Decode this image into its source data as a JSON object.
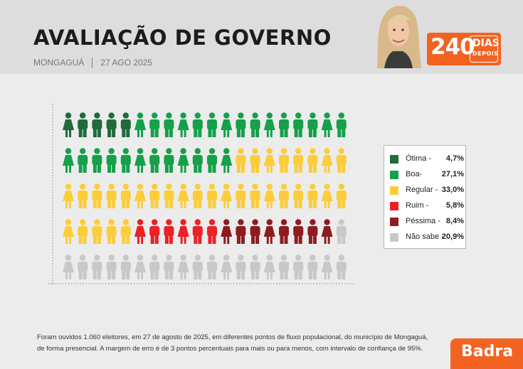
{
  "header": {
    "title": "AVALIAÇÃO DE GOVERNO",
    "location": "MONGAGUÁ",
    "date": "27 AGO 2025",
    "badge_number": "240",
    "badge_word1": "DIAS",
    "badge_word2": "DEPOIS",
    "accent_color": "#f26322"
  },
  "chart_data": {
    "type": "pictograph",
    "icons_total": 100,
    "series": [
      {
        "name": "Ótima",
        "label": "Ótima -",
        "value_text": "4,7%",
        "value": 4.7,
        "icons": 5,
        "color": "#1f6b3a"
      },
      {
        "name": "Boa",
        "label": "Boa-",
        "value_text": "27,1%",
        "value": 27.1,
        "icons": 27,
        "color": "#15a04a"
      },
      {
        "name": "Regular",
        "label": "Regular -",
        "value_text": "33,0%",
        "value": 33.0,
        "icons": 33,
        "color": "#fccd3b"
      },
      {
        "name": "Ruim",
        "label": "Ruim -",
        "value_text": "5,8%",
        "value": 5.8,
        "icons": 6,
        "color": "#ec2027"
      },
      {
        "name": "Péssima",
        "label": "Péssima -",
        "value_text": "8,4%",
        "value": 8.4,
        "icons": 8,
        "color": "#8d1c1f"
      },
      {
        "name": "Não sabe",
        "label": "Não sabe -",
        "value_text": "20,9%",
        "value": 20.9,
        "icons": 21,
        "color": "#c8c8c8"
      }
    ],
    "legend_position": "right"
  },
  "footnote": {
    "line1": "Foram ouvidos 1.060 eleitores, em 27 de agosto de 2025, em diferentes pontos de fluxo populacional, do município de Mongaguá,",
    "line2": "de forma presencial. A margem de erro é de 3 pontos percentuais para mais ou para menos, com intervalo de confiança de 95%."
  },
  "brand": {
    "name": "Badra"
  }
}
